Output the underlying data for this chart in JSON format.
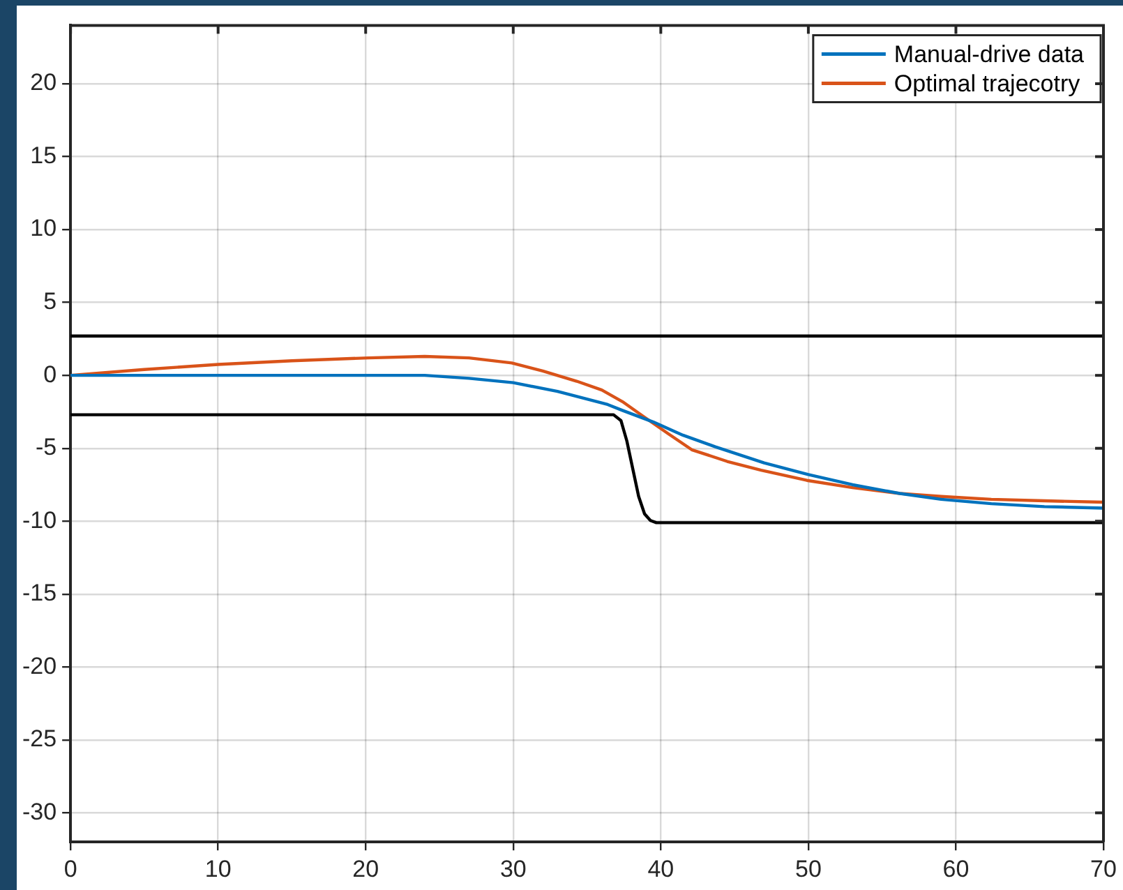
{
  "chart_data": {
    "type": "line",
    "xlim": [
      0,
      70
    ],
    "ylim": [
      -32,
      24
    ],
    "xticks": [
      0,
      10,
      20,
      30,
      40,
      50,
      60,
      70
    ],
    "yticks": [
      -30,
      -25,
      -20,
      -15,
      -10,
      -5,
      0,
      5,
      10,
      15,
      20
    ],
    "grid": true,
    "legend": "top right",
    "marker": "none",
    "line_style": "solid",
    "series": [
      {
        "name": "Manual-drive data",
        "color": "#0072bd",
        "x": [
          0,
          10,
          20,
          24,
          27,
          30,
          33,
          36.4,
          37.4,
          39.5,
          41.5,
          43.7,
          47,
          50,
          53,
          56.2,
          59,
          62.4,
          66,
          70
        ],
        "values": [
          0,
          0,
          0,
          0,
          -0.2,
          -0.5,
          -1.1,
          -2,
          -2.4,
          -3.2,
          -4.1,
          -4.9,
          -6,
          -6.8,
          -7.5,
          -8.1,
          -8.5,
          -8.8,
          -9,
          -9.1
        ]
      },
      {
        "name": "Optimal trajecotry",
        "color": "#d95319",
        "x": [
          0,
          5,
          10,
          15,
          20.2,
          24,
          27,
          29.9,
          32,
          34.3,
          36,
          37.4,
          38.8,
          40.5,
          42.1,
          44.5,
          46.8,
          49.9,
          53,
          56.2,
          59,
          62.4,
          66,
          70
        ],
        "values": [
          0,
          0.4,
          0.75,
          1,
          1.2,
          1.3,
          1.2,
          0.85,
          0.3,
          -0.4,
          -1,
          -1.8,
          -2.8,
          -4,
          -5.1,
          -5.9,
          -6.5,
          -7.2,
          -7.7,
          -8.1,
          -8.3,
          -8.5,
          -8.6,
          -8.7
        ]
      },
      {
        "color": "#000000",
        "x": [
          0,
          70
        ],
        "values": [
          2.7,
          2.7
        ]
      },
      {
        "color": "#000000",
        "x": [
          0,
          36.8,
          37.3,
          37.7,
          38.1,
          38.5,
          38.9,
          39.3,
          39.7,
          70
        ],
        "values": [
          -2.7,
          -2.7,
          -3.1,
          -4.5,
          -6.4,
          -8.3,
          -9.5,
          -9.95,
          -10.1,
          -10.1
        ]
      }
    ]
  }
}
